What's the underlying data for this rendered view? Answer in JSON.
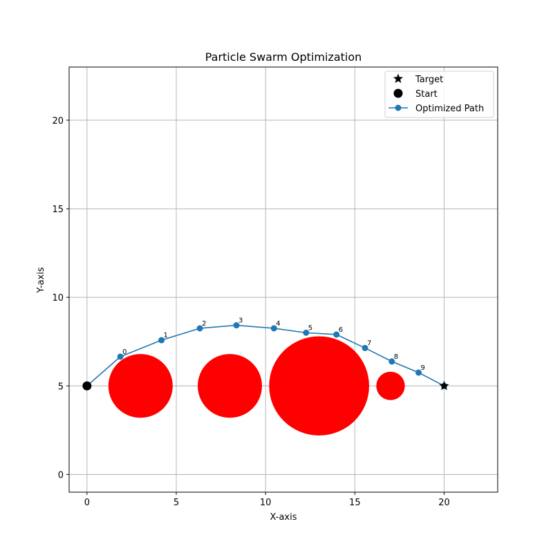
{
  "chart_data": {
    "type": "scatter",
    "title": "Particle Swarm Optimization",
    "xlabel": "X-axis",
    "ylabel": "Y-axis",
    "xlim": [
      -1,
      23
    ],
    "ylim": [
      -1,
      23
    ],
    "xticks": [
      0,
      5,
      10,
      15,
      20
    ],
    "yticks": [
      0,
      5,
      10,
      15,
      20
    ],
    "grid": true,
    "legend_position": "top-right",
    "colors": {
      "path": "#1f77b4",
      "obstacle": "#ff0000",
      "marker": "#000000",
      "grid": "#b0b0b0"
    },
    "start": {
      "name": "Start",
      "x": 0,
      "y": 5
    },
    "target": {
      "name": "Target",
      "x": 20,
      "y": 5
    },
    "obstacles": [
      {
        "cx": 3,
        "cy": 5,
        "r": 1.8
      },
      {
        "cx": 8,
        "cy": 5,
        "r": 1.8
      },
      {
        "cx": 13,
        "cy": 5,
        "r": 2.8
      },
      {
        "cx": 17,
        "cy": 5,
        "r": 0.8
      }
    ],
    "series": [
      {
        "name": "Optimized Path",
        "points": [
          {
            "x": 0,
            "y": 5,
            "label": ""
          },
          {
            "x": 1.87,
            "y": 6.65,
            "label": "0"
          },
          {
            "x": 4.17,
            "y": 7.58,
            "label": "1"
          },
          {
            "x": 6.32,
            "y": 8.25,
            "label": "2"
          },
          {
            "x": 8.37,
            "y": 8.42,
            "label": "3"
          },
          {
            "x": 10.47,
            "y": 8.25,
            "label": "4"
          },
          {
            "x": 12.27,
            "y": 8.0,
            "label": "5"
          },
          {
            "x": 13.97,
            "y": 7.9,
            "label": "6"
          },
          {
            "x": 15.57,
            "y": 7.14,
            "label": "7"
          },
          {
            "x": 17.07,
            "y": 6.38,
            "label": "8"
          },
          {
            "x": 18.57,
            "y": 5.75,
            "label": "9"
          },
          {
            "x": 20,
            "y": 5,
            "label": ""
          }
        ]
      }
    ],
    "legend": [
      {
        "label": "Target",
        "marker": "star"
      },
      {
        "label": "Start",
        "marker": "circle"
      },
      {
        "label": "Optimized Path",
        "marker": "line-dot"
      }
    ]
  }
}
